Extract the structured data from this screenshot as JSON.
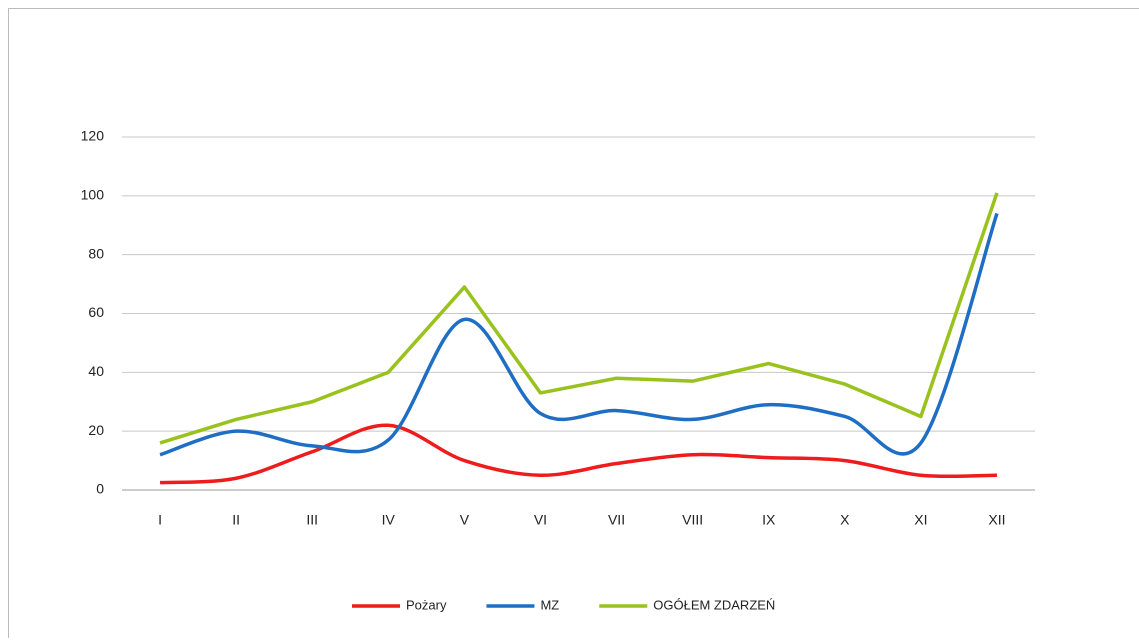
{
  "chart_data": {
    "type": "line",
    "categories": [
      "I",
      "II",
      "III",
      "IV",
      "V",
      "VI",
      "VII",
      "VIII",
      "IX",
      "X",
      "XI",
      "XII"
    ],
    "series": [
      {
        "name": "Pożary",
        "color": "#ee1c1c",
        "smooth": true,
        "values": [
          2.5,
          4,
          13,
          22,
          10,
          5,
          9,
          12,
          11,
          10,
          5,
          5
        ]
      },
      {
        "name": "MZ",
        "color": "#1f6ec4",
        "smooth": true,
        "values": [
          12,
          20,
          15,
          17,
          58,
          26,
          27,
          24,
          29,
          25,
          16,
          94
        ]
      },
      {
        "name": "OGÓŁEM ZDARZEŃ",
        "color": "#99c21c",
        "smooth": false,
        "values": [
          16,
          24,
          30,
          40,
          69,
          33,
          38,
          37,
          43,
          36,
          25,
          101
        ]
      }
    ],
    "ylim": [
      0,
      120
    ],
    "yticks": [
      0,
      20,
      40,
      60,
      80,
      100,
      120
    ],
    "grid": true,
    "legend": "bottom"
  }
}
